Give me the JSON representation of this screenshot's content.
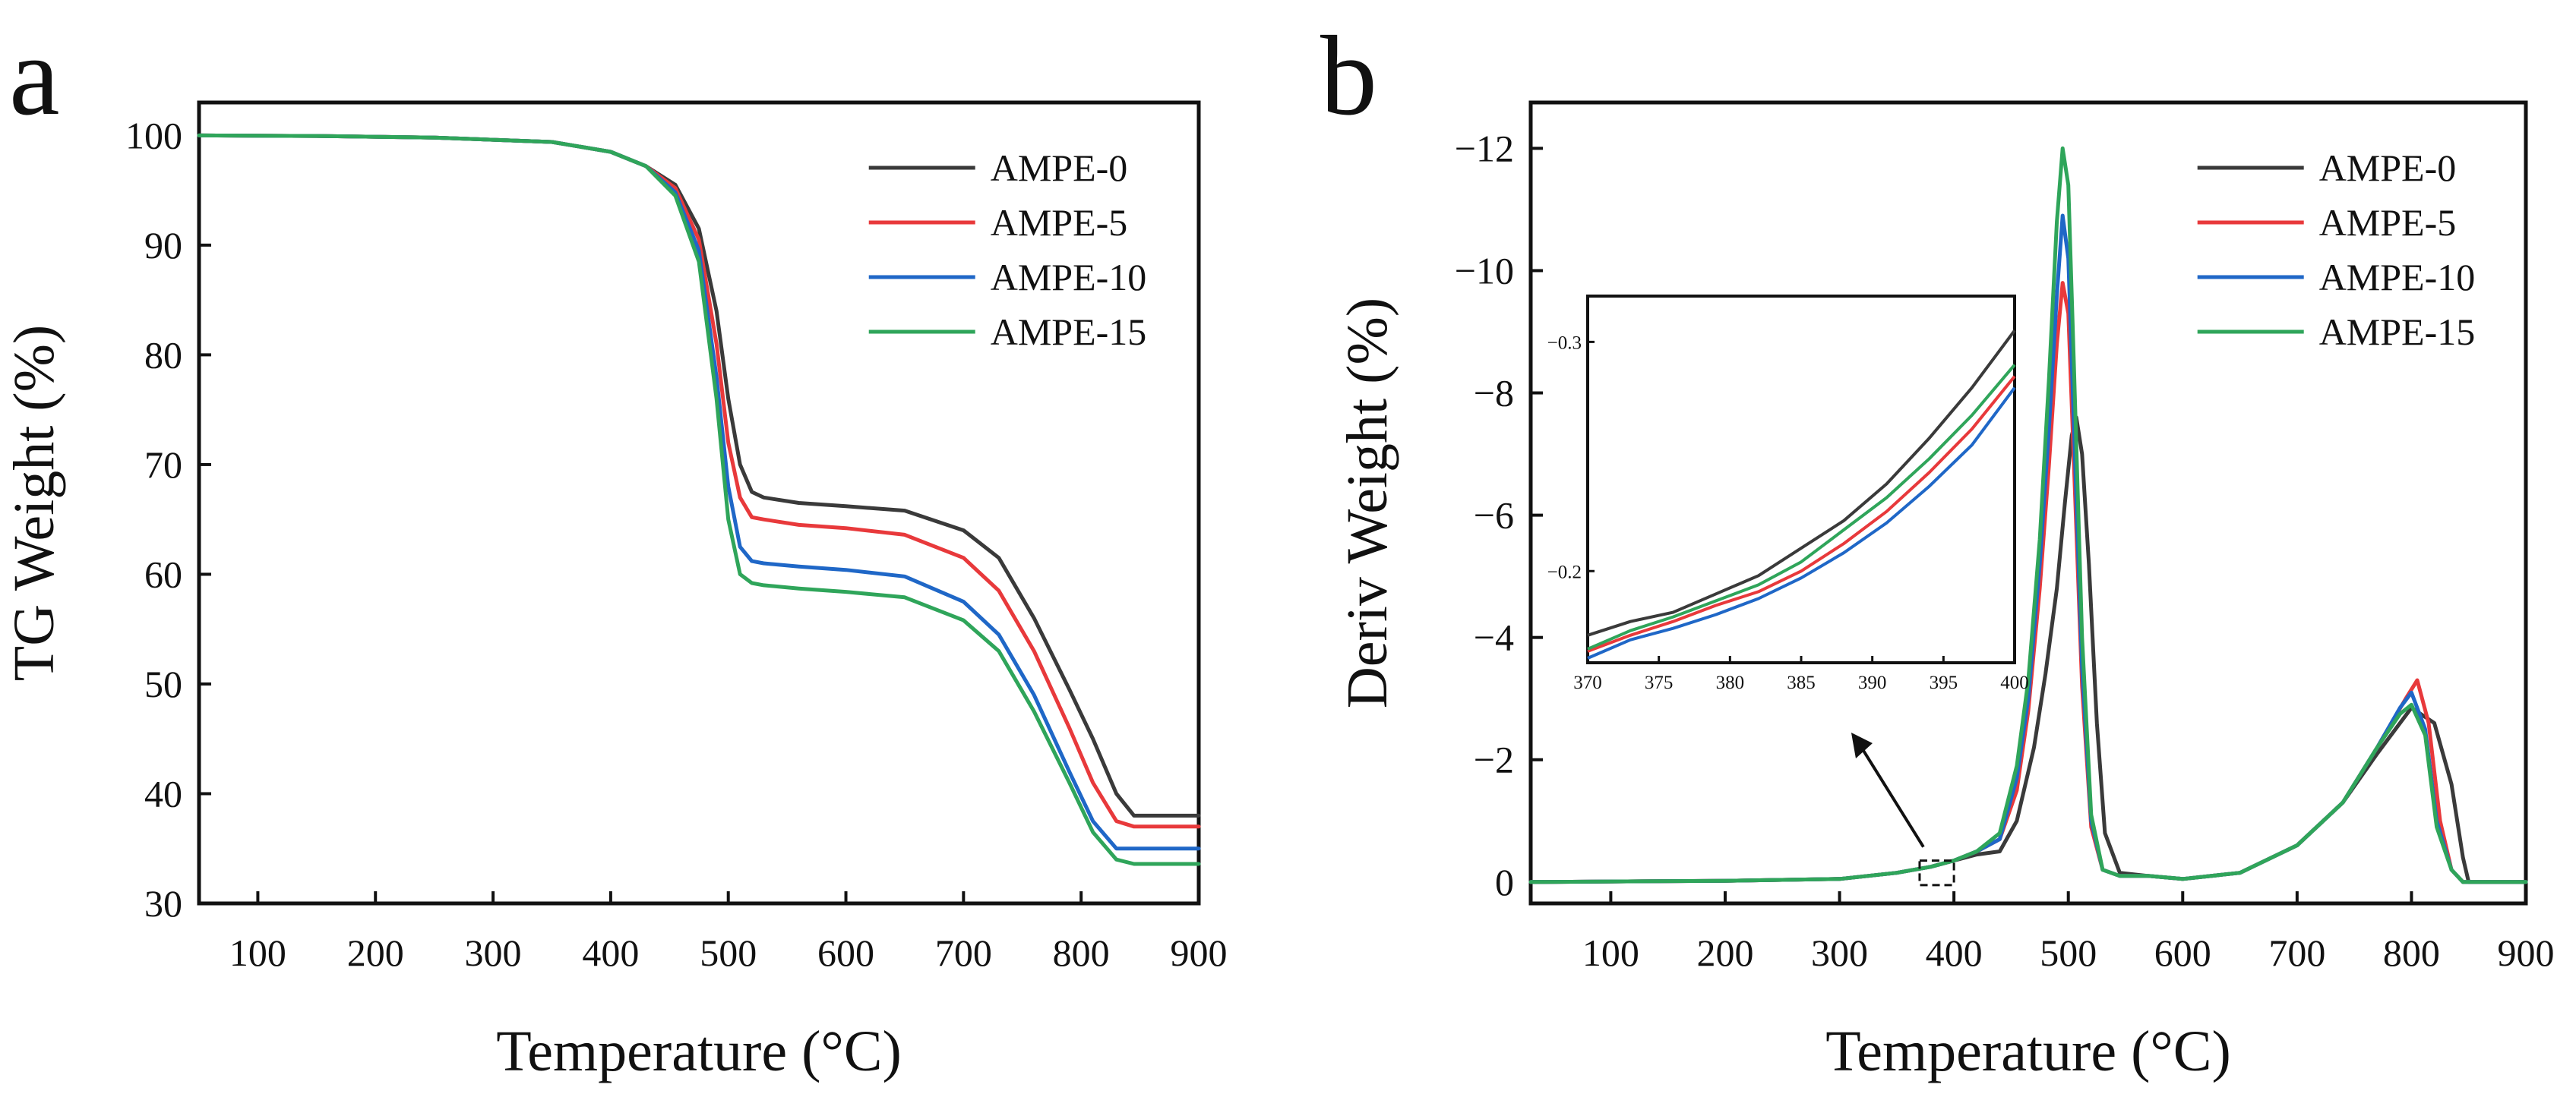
{
  "chart_data": [
    {
      "panel": "a",
      "type": "line",
      "xlabel": "Temperature (°C)",
      "ylabel": "TG Weight (%)",
      "xlim": [
        50,
        900
      ],
      "ylim": [
        30,
        103
      ],
      "xticks": [
        100,
        200,
        300,
        400,
        500,
        600,
        700,
        800,
        900
      ],
      "yticks": [
        30,
        40,
        50,
        60,
        70,
        80,
        90,
        100
      ],
      "legend_position": "top-right",
      "series": [
        {
          "name": "AMPE-0",
          "color": "#3a3a3a",
          "x": [
            50,
            150,
            250,
            350,
            400,
            430,
            455,
            475,
            490,
            500,
            510,
            520,
            530,
            560,
            600,
            650,
            700,
            730,
            760,
            790,
            810,
            830,
            845,
            870,
            900
          ],
          "y": [
            100,
            99.95,
            99.8,
            99.4,
            98.5,
            97.2,
            95.5,
            91.5,
            84,
            76,
            70,
            67.5,
            67,
            66.5,
            66.2,
            65.8,
            64,
            61.5,
            56,
            49.5,
            45,
            40,
            38,
            38,
            38
          ]
        },
        {
          "name": "AMPE-5",
          "color": "#e8393b",
          "x": [
            50,
            150,
            250,
            350,
            400,
            430,
            455,
            475,
            490,
            500,
            510,
            520,
            530,
            560,
            600,
            650,
            700,
            730,
            760,
            790,
            810,
            830,
            845,
            870,
            900
          ],
          "y": [
            100,
            99.95,
            99.8,
            99.4,
            98.5,
            97.2,
            95.2,
            90.5,
            81,
            72,
            67,
            65.2,
            65,
            64.5,
            64.2,
            63.6,
            61.5,
            58.5,
            53,
            46,
            41,
            37.5,
            37,
            37,
            37
          ]
        },
        {
          "name": "AMPE-10",
          "color": "#1f67c7",
          "x": [
            50,
            150,
            250,
            350,
            400,
            430,
            455,
            475,
            490,
            500,
            510,
            520,
            530,
            560,
            600,
            650,
            700,
            730,
            760,
            790,
            810,
            830,
            845,
            870,
            900
          ],
          "y": [
            100,
            99.95,
            99.8,
            99.4,
            98.5,
            97.2,
            94.8,
            89.5,
            78,
            68,
            62.5,
            61.2,
            61,
            60.7,
            60.4,
            59.8,
            57.5,
            54.5,
            49,
            42,
            37.5,
            35,
            35,
            35,
            35
          ]
        },
        {
          "name": "AMPE-15",
          "color": "#2fa55a",
          "x": [
            50,
            150,
            250,
            350,
            400,
            430,
            455,
            475,
            490,
            500,
            510,
            520,
            530,
            560,
            600,
            650,
            700,
            730,
            760,
            790,
            810,
            830,
            845,
            870,
            900
          ],
          "y": [
            100,
            99.95,
            99.8,
            99.4,
            98.5,
            97.2,
            94.5,
            88.5,
            76,
            65,
            60,
            59.2,
            59,
            58.7,
            58.4,
            57.9,
            55.8,
            53,
            47.5,
            41,
            36.5,
            34,
            33.6,
            33.6,
            33.6
          ]
        }
      ]
    },
    {
      "panel": "b",
      "type": "line",
      "xlabel": "Temperature (°C)",
      "ylabel": "Deriv Weight (%)",
      "xlim": [
        30,
        900
      ],
      "ylim": [
        0.35,
        -12.75
      ],
      "y_axis_inverted": true,
      "xticks": [
        100,
        200,
        300,
        400,
        500,
        600,
        700,
        800,
        900
      ],
      "yticks": [
        0,
        -2,
        -4,
        -6,
        -8,
        -10,
        -12
      ],
      "ytick_labels": [
        "0",
        "−2",
        "−4",
        "−6",
        "−8",
        "−10",
        "−12"
      ],
      "legend_position": "top-right",
      "annotation": "arrow from zoomed region near 370–400 °C to inset",
      "series": [
        {
          "name": "AMPE-0",
          "color": "#3a3a3a",
          "x": [
            30,
            200,
            300,
            350,
            380,
            400,
            420,
            440,
            455,
            470,
            480,
            490,
            497,
            503,
            507,
            512,
            518,
            525,
            532,
            545,
            570,
            600,
            650,
            700,
            740,
            770,
            800,
            820,
            835,
            845,
            850,
            870,
            900
          ],
          "y": [
            0,
            -0.02,
            -0.05,
            -0.15,
            -0.25,
            -0.35,
            -0.45,
            -0.5,
            -1,
            -2.2,
            -3.4,
            -4.8,
            -6.2,
            -7.3,
            -7.6,
            -7.0,
            -5.2,
            -2.6,
            -0.8,
            -0.15,
            -0.1,
            -0.05,
            -0.15,
            -0.6,
            -1.3,
            -2.1,
            -2.85,
            -2.6,
            -1.6,
            -0.4,
            0,
            0,
            0
          ]
        },
        {
          "name": "AMPE-5",
          "color": "#e8393b",
          "x": [
            30,
            200,
            300,
            350,
            380,
            400,
            420,
            440,
            455,
            465,
            475,
            483,
            490,
            495,
            500,
            505,
            512,
            520,
            530,
            545,
            570,
            600,
            650,
            700,
            740,
            770,
            795,
            805,
            815,
            825,
            835,
            845,
            870,
            900
          ],
          "y": [
            0,
            -0.02,
            -0.05,
            -0.15,
            -0.25,
            -0.35,
            -0.5,
            -0.7,
            -1.5,
            -2.8,
            -4.8,
            -6.8,
            -8.8,
            -9.8,
            -9.3,
            -6.8,
            -3.2,
            -0.9,
            -0.2,
            -0.1,
            -0.1,
            -0.05,
            -0.15,
            -0.6,
            -1.3,
            -2.2,
            -3.0,
            -3.3,
            -2.6,
            -1.0,
            -0.2,
            0,
            0,
            0
          ]
        },
        {
          "name": "AMPE-10",
          "color": "#1f67c7",
          "x": [
            30,
            200,
            300,
            350,
            380,
            400,
            420,
            440,
            455,
            465,
            475,
            483,
            490,
            495,
            500,
            505,
            512,
            520,
            530,
            545,
            570,
            600,
            650,
            700,
            740,
            770,
            790,
            800,
            812,
            822,
            835,
            845,
            870,
            900
          ],
          "y": [
            0,
            -0.02,
            -0.05,
            -0.15,
            -0.25,
            -0.35,
            -0.5,
            -0.7,
            -1.7,
            -3,
            -5.2,
            -7.4,
            -9.6,
            -10.9,
            -10.2,
            -7.4,
            -3.5,
            -1.0,
            -0.2,
            -0.1,
            -0.1,
            -0.05,
            -0.15,
            -0.6,
            -1.3,
            -2.2,
            -2.85,
            -3.1,
            -2.5,
            -1.0,
            -0.2,
            0,
            0,
            0
          ]
        },
        {
          "name": "AMPE-15",
          "color": "#2fa55a",
          "x": [
            30,
            200,
            300,
            350,
            380,
            400,
            420,
            440,
            455,
            465,
            475,
            483,
            490,
            495,
            500,
            505,
            512,
            520,
            530,
            545,
            570,
            600,
            650,
            700,
            740,
            770,
            790,
            800,
            812,
            822,
            835,
            845,
            870,
            900
          ],
          "y": [
            0,
            -0.02,
            -0.05,
            -0.15,
            -0.25,
            -0.35,
            -0.5,
            -0.8,
            -1.9,
            -3.3,
            -5.6,
            -8.2,
            -10.8,
            -12.0,
            -11.4,
            -8.4,
            -4.0,
            -1.1,
            -0.2,
            -0.1,
            -0.1,
            -0.05,
            -0.15,
            -0.6,
            -1.3,
            -2.2,
            -2.75,
            -2.9,
            -2.4,
            -0.9,
            -0.2,
            0,
            0,
            0
          ]
        }
      ],
      "inset": {
        "xlim": [
          370,
          400
        ],
        "ylim": [
          -0.16,
          -0.32
        ],
        "xticks": [
          370,
          375,
          380,
          385,
          390,
          395,
          400
        ],
        "yticks": [
          -0.2,
          -0.3
        ],
        "ytick_labels": [
          "−0.2",
          "−0.3"
        ],
        "series": [
          {
            "name": "AMPE-0",
            "color": "#3a3a3a",
            "x": [
              370,
              373,
              376,
              379,
              382,
              385,
              388,
              391,
              394,
              397,
              400
            ],
            "y": [
              -0.172,
              -0.178,
              -0.182,
              -0.19,
              -0.198,
              -0.21,
              -0.222,
              -0.238,
              -0.258,
              -0.28,
              -0.305
            ]
          },
          {
            "name": "AMPE-5",
            "color": "#e8393b",
            "x": [
              370,
              373,
              376,
              379,
              382,
              385,
              388,
              391,
              394,
              397,
              400
            ],
            "y": [
              -0.165,
              -0.172,
              -0.178,
              -0.185,
              -0.191,
              -0.2,
              -0.212,
              -0.226,
              -0.243,
              -0.262,
              -0.285
            ]
          },
          {
            "name": "AMPE-10",
            "color": "#1f67c7",
            "x": [
              370,
              373,
              376,
              379,
              382,
              385,
              388,
              391,
              394,
              397,
              400
            ],
            "y": [
              -0.162,
              -0.17,
              -0.175,
              -0.181,
              -0.188,
              -0.197,
              -0.208,
              -0.221,
              -0.237,
              -0.255,
              -0.28
            ]
          },
          {
            "name": "AMPE-15",
            "color": "#2fa55a",
            "x": [
              370,
              373,
              376,
              379,
              382,
              385,
              388,
              391,
              394,
              397,
              400
            ],
            "y": [
              -0.166,
              -0.174,
              -0.18,
              -0.187,
              -0.194,
              -0.204,
              -0.218,
              -0.232,
              -0.249,
              -0.268,
              -0.29
            ]
          }
        ]
      }
    }
  ]
}
